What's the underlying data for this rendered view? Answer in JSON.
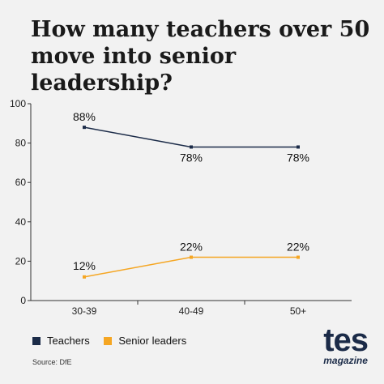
{
  "title_lines": [
    "How many teachers over 50",
    "move into senior leadership?"
  ],
  "chart_data": {
    "type": "line",
    "categories": [
      "30-39",
      "40-49",
      "50+"
    ],
    "series": [
      {
        "name": "Teachers",
        "values": [
          88,
          78,
          78
        ],
        "labels": [
          "88%",
          "78%",
          "78%"
        ],
        "color": "#1b2b48"
      },
      {
        "name": "Senior leaders",
        "values": [
          12,
          22,
          22
        ],
        "labels": [
          "12%",
          "22%",
          "22%"
        ],
        "color": "#f5a623"
      }
    ],
    "yticks": [
      0,
      20,
      40,
      60,
      80,
      100
    ],
    "ylim": [
      0,
      100
    ],
    "grid": false,
    "legend_position": "bottom-left"
  },
  "source": "Source: DfE",
  "logo": {
    "big": "tes",
    "small": "magazine"
  }
}
